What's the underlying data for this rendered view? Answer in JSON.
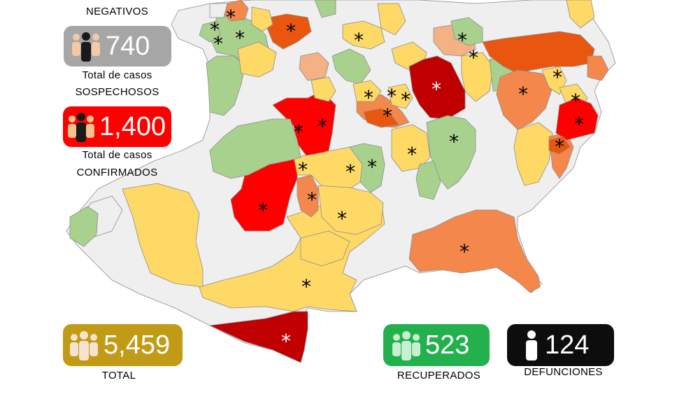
{
  "legend": {
    "negativos": {
      "label": "NEGATIVOS"
    },
    "sospechosos": {
      "value": "740",
      "label_line1": "Total de casos",
      "label_line2": "SOSPECHOSOS",
      "color": "#a6a6a6"
    },
    "confirmados": {
      "value": "1,400",
      "label_line1": "Total de casos",
      "label_line2": "CONFIRMADOS",
      "color": "#ff0000"
    },
    "total": {
      "value": "5,459",
      "label": "TOTAL",
      "color": "#c19a16"
    },
    "recuperados": {
      "value": "523",
      "label": "RECUPERADOS",
      "color": "#22b14c"
    },
    "defunciones": {
      "value": "124",
      "label": "DEFUNCIONES",
      "color": "#0d0d0d"
    }
  },
  "map_colors": {
    "none": "#efefef",
    "green": "#a9d18e",
    "yellow": "#ffd966",
    "light_orange": "#f4b183",
    "orange": "#f4874b",
    "dark_orange": "#e9560f",
    "red": "#ff0000",
    "dark_red": "#c00000",
    "border": "#8c8c8c"
  },
  "map_marker": "*"
}
